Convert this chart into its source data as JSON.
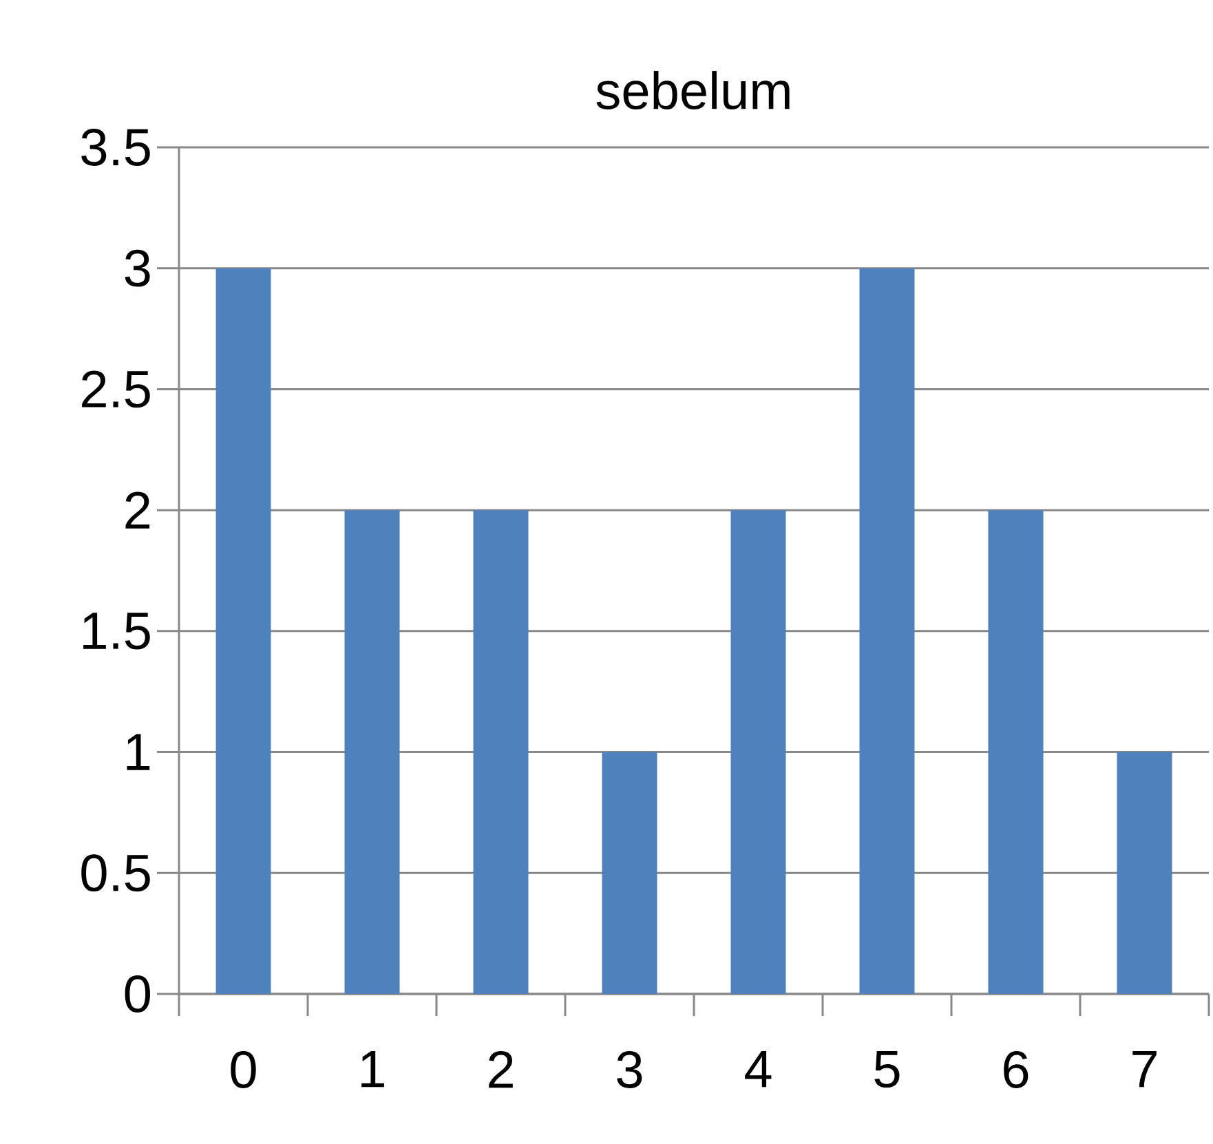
{
  "chart_data": {
    "type": "bar",
    "title": "sebelum",
    "categories": [
      "0",
      "1",
      "2",
      "3",
      "4",
      "5",
      "6",
      "7"
    ],
    "values": [
      3,
      2,
      2,
      1,
      2,
      3,
      2,
      1
    ],
    "color": "#4f81bd",
    "ylim": [
      0,
      3.5
    ],
    "yticks": [
      0,
      0.5,
      1,
      1.5,
      2,
      2.5,
      3,
      3.5
    ],
    "grid": "y"
  }
}
